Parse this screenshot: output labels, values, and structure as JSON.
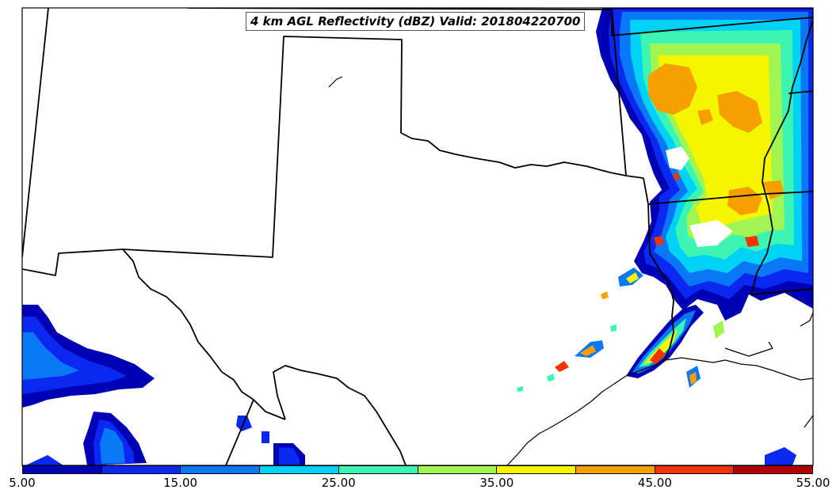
{
  "title": "4 km AGL Reflectivity (dBZ) Valid: 201804220700",
  "colorbar": {
    "colors": [
      "#0000b4",
      "#0a28f0",
      "#0a78f5",
      "#00d2f5",
      "#3cf5b4",
      "#a0f550",
      "#f5f500",
      "#f5a000",
      "#f53200",
      "#b40000"
    ],
    "tick_labels": [
      "5.00",
      "15.00",
      "25.00",
      "35.00",
      "45.00",
      "55.00"
    ],
    "range": [
      5,
      55
    ],
    "step": 5
  },
  "colors": {
    "land": "#ffffff",
    "borders": "#000000",
    "frame": "#000000"
  }
}
